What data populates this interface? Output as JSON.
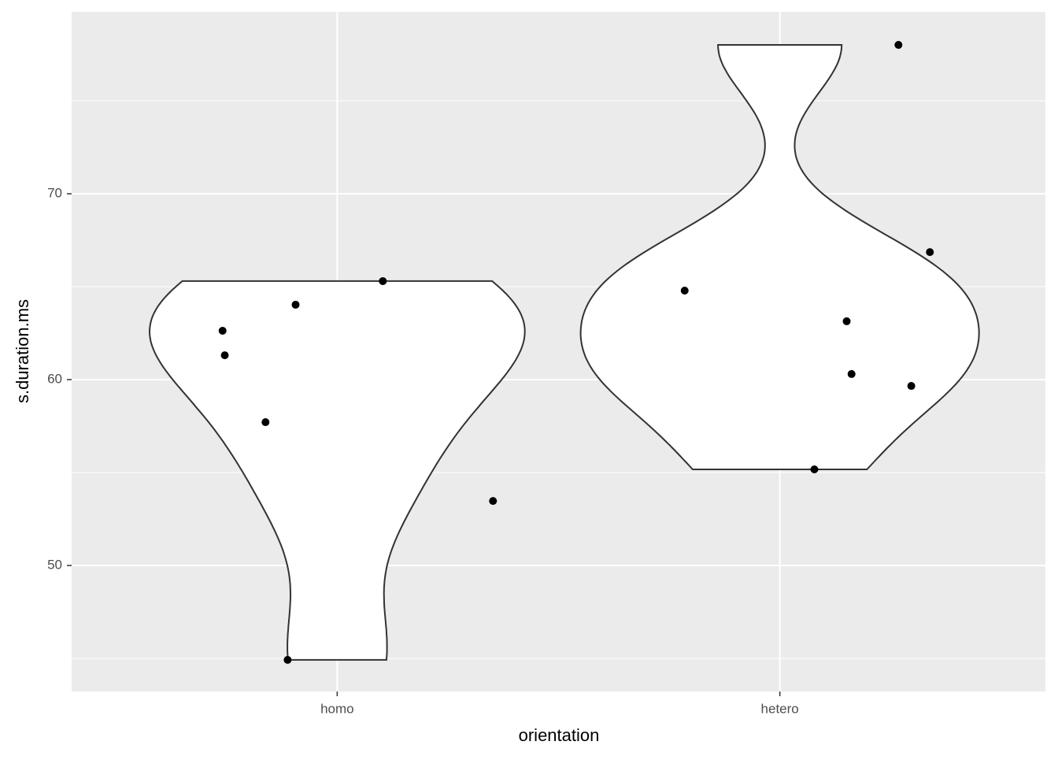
{
  "chart_data": {
    "type": "violin",
    "x_label": "orientation",
    "y_label": "s.duration.ms",
    "xlim": [
      0.4,
      2.6
    ],
    "xticks": [
      {
        "value": 1,
        "label": "homo"
      },
      {
        "value": 2,
        "label": "hetero"
      }
    ],
    "ylim": [
      43.22,
      79.79
    ],
    "yticks": [
      50,
      60,
      70
    ],
    "grid": true,
    "violin_fill": "#ffffff",
    "violin_stroke": "#333333",
    "color": "#000000",
    "series": [
      {
        "x": [
          0.741,
          0.746,
          0.906,
          1.103,
          0.838,
          1.352,
          0.888
        ],
        "values": [
          62.63,
          61.31,
          64.03,
          65.3,
          57.71,
          53.47,
          44.92
        ]
      },
      {
        "x": [
          1.785,
          2.151,
          2.162,
          2.297,
          2.078,
          2.339,
          2.268
        ],
        "values": [
          64.79,
          63.14,
          60.3,
          59.66,
          55.17,
          66.86,
          78.01
        ]
      }
    ]
  }
}
